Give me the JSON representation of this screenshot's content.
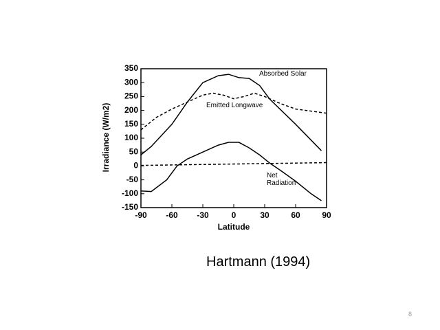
{
  "chart_data": {
    "type": "line",
    "xlabel": "Latitude",
    "ylabel": "Irradiance (W/m2)",
    "xlim": [
      -90,
      90
    ],
    "xticks": [
      -90,
      -60,
      -30,
      0,
      30,
      60,
      90
    ],
    "ylim": [
      -150,
      350
    ],
    "yticks": [
      350,
      300,
      250,
      200,
      150,
      100,
      50,
      0,
      -50,
      -100,
      -150
    ],
    "series": [
      {
        "name": "Absorbed Solar",
        "color": "#000000",
        "dashed": false,
        "x": [
          -90,
          -80,
          -60,
          -45,
          -30,
          -15,
          -5,
          5,
          15,
          25,
          35,
          60,
          85
        ],
        "values": [
          40,
          70,
          150,
          230,
          300,
          325,
          330,
          318,
          315,
          290,
          240,
          150,
          55
        ]
      },
      {
        "name": "Emitted Longwave",
        "color": "#000000",
        "dashed": true,
        "x": [
          -90,
          -75,
          -60,
          -45,
          -30,
          -20,
          -10,
          0,
          10,
          20,
          30,
          45,
          60,
          90
        ],
        "values": [
          130,
          175,
          205,
          230,
          255,
          262,
          255,
          242,
          250,
          262,
          250,
          225,
          205,
          190
        ]
      },
      {
        "name": "Net Radiation",
        "color": "#000000",
        "dashed": false,
        "x": [
          -90,
          -80,
          -65,
          -55,
          -45,
          -30,
          -15,
          -5,
          5,
          15,
          25,
          35,
          45,
          60,
          75,
          85
        ],
        "values": [
          -90,
          -92,
          -50,
          0,
          25,
          50,
          75,
          85,
          85,
          65,
          40,
          10,
          -15,
          -55,
          -100,
          -125
        ]
      },
      {
        "color": "#000000",
        "dashed": true,
        "x": [
          -90,
          90
        ],
        "values": [
          2,
          12
        ]
      }
    ]
  },
  "caption": "Hartmann (1994)",
  "page_number": "8"
}
